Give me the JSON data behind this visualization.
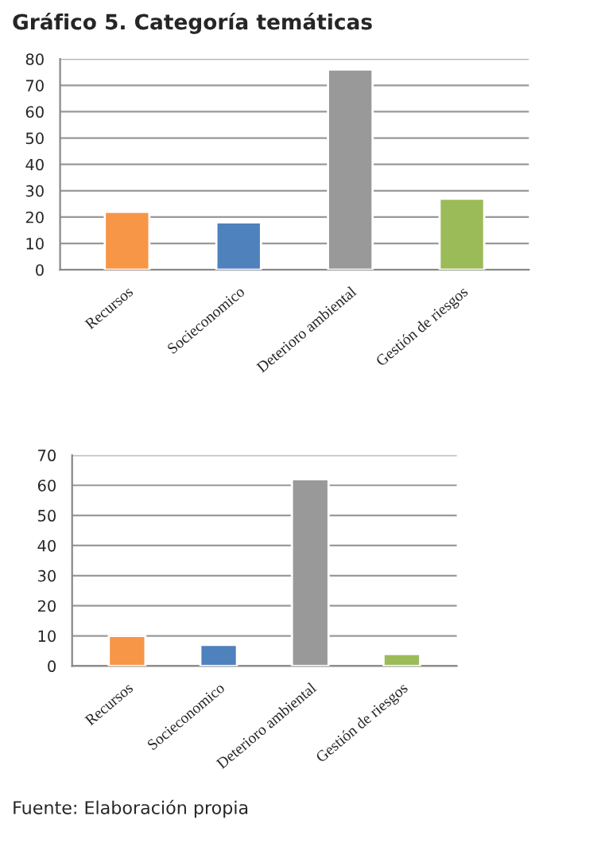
{
  "chart_data": [
    {
      "type": "bar",
      "title": "Gráfico 5. Categoría temáticas",
      "categories": [
        "Recursos",
        "Socieconomico",
        "Deterioro ambiental",
        "Gestión de riesgos"
      ],
      "values": [
        22,
        18,
        76,
        27
      ],
      "colors": [
        "#f79646",
        "#4f81bd",
        "#999999",
        "#9bbb59"
      ],
      "ylim": [
        0,
        80
      ],
      "yticks": [
        0,
        10,
        20,
        30,
        40,
        50,
        60,
        70,
        80
      ],
      "grid": "y",
      "legend": false
    },
    {
      "type": "bar",
      "categories": [
        "Recursos",
        "Socieconomico",
        "Deterioro ambiental",
        "Gestión de riesgos"
      ],
      "values": [
        10,
        7,
        62,
        4
      ],
      "colors": [
        "#f79646",
        "#4f81bd",
        "#999999",
        "#9bbb59"
      ],
      "ylim": [
        0,
        70
      ],
      "yticks": [
        0,
        10,
        20,
        30,
        40,
        50,
        60,
        70
      ],
      "grid": "y",
      "legend": false,
      "annotations": [
        "Fuente: Elaboración propia"
      ]
    }
  ]
}
